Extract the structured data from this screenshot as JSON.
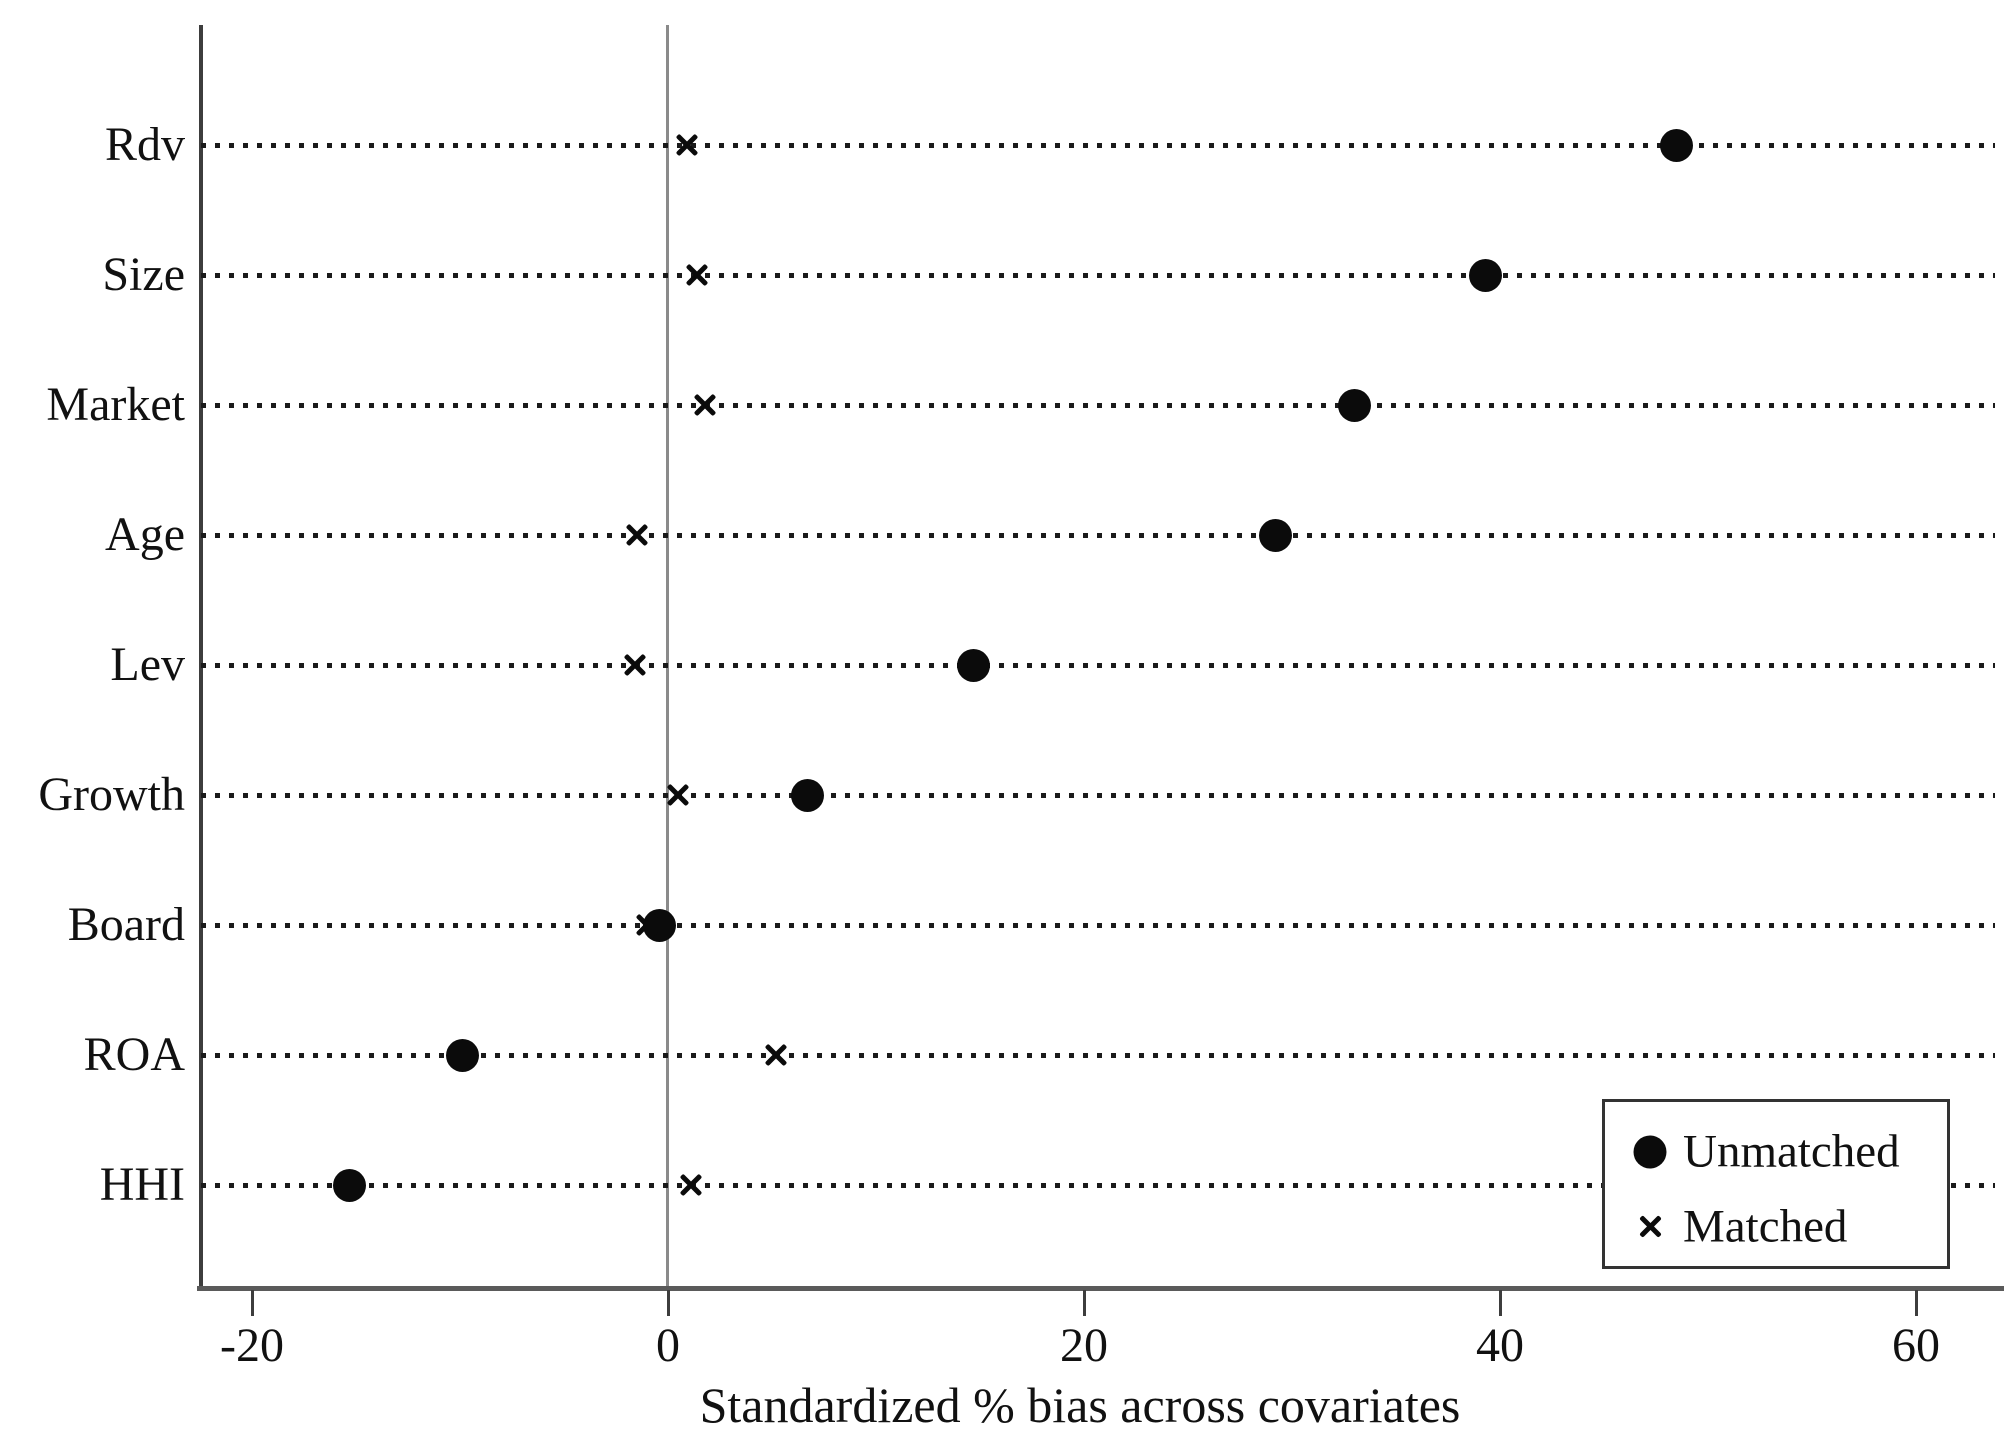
{
  "chart_data": {
    "type": "scatter",
    "orientation": "horizontal-dot-plot",
    "title": "",
    "xlabel": "Standardized % bias across covariates",
    "ylabel": "",
    "categories": [
      "Rdv",
      "Size",
      "Market",
      "Age",
      "Lev",
      "Growth",
      "Board",
      "ROA",
      "HHI"
    ],
    "series": [
      {
        "name": "Unmatched",
        "marker": "circle",
        "values": [
          48.5,
          39.3,
          33.0,
          29.2,
          14.7,
          6.7,
          -0.4,
          -9.9,
          -15.3
        ]
      },
      {
        "name": "Matched",
        "marker": "x",
        "values": [
          0.9,
          1.4,
          1.8,
          -1.5,
          -1.6,
          0.5,
          -1.0,
          5.2,
          1.1
        ]
      }
    ],
    "x_ticks": [
      -20,
      0,
      20,
      40,
      60
    ],
    "xlim": [
      -22.5,
      63.8
    ],
    "reference_line_x": 0,
    "grid": "dotted-horizontal-per-category",
    "legend_position": "inside-bottom-right"
  },
  "legend": {
    "items": [
      {
        "label": "Unmatched",
        "marker": "circle"
      },
      {
        "label": "Matched",
        "marker": "x"
      }
    ]
  },
  "colors": {
    "marker": "#0b0b0b",
    "text": "#111111",
    "axis_spine": "#3d3d3d",
    "zero_line": "#8a8a8a",
    "dotted_line": "#1a1a1a",
    "legend_border": "#333333",
    "background": "#ffffff"
  }
}
